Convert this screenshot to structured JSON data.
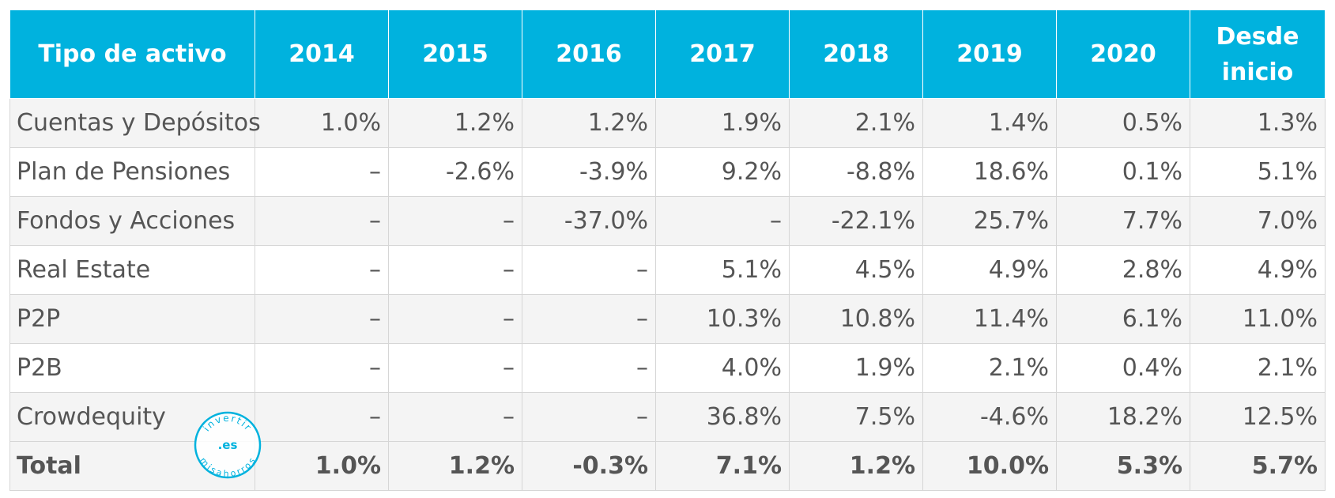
{
  "header": {
    "asset_type": "Tipo de activo",
    "years": [
      "2014",
      "2015",
      "2016",
      "2017",
      "2018",
      "2019",
      "2020"
    ],
    "since_start_line1": "Desde",
    "since_start_line2": "inicio"
  },
  "rows": [
    {
      "label": "Cuentas y Depósitos",
      "values": [
        "1.0%",
        "1.2%",
        "1.2%",
        "1.9%",
        "2.1%",
        "1.4%",
        "0.5%",
        "1.3%"
      ]
    },
    {
      "label": "Plan de Pensiones",
      "values": [
        "–",
        "-2.6%",
        "-3.9%",
        "9.2%",
        "-8.8%",
        "18.6%",
        "0.1%",
        "5.1%"
      ]
    },
    {
      "label": "Fondos y Acciones",
      "values": [
        "–",
        "–",
        "-37.0%",
        "–",
        "-22.1%",
        "25.7%",
        "7.7%",
        "7.0%"
      ]
    },
    {
      "label": "Real Estate",
      "values": [
        "–",
        "–",
        "–",
        "5.1%",
        "4.5%",
        "4.9%",
        "2.8%",
        "4.9%"
      ]
    },
    {
      "label": "P2P",
      "values": [
        "–",
        "–",
        "–",
        "10.3%",
        "10.8%",
        "11.4%",
        "6.1%",
        "11.0%"
      ]
    },
    {
      "label": "P2B",
      "values": [
        "–",
        "–",
        "–",
        "4.0%",
        "1.9%",
        "2.1%",
        "0.4%",
        "2.1%"
      ]
    },
    {
      "label": "Crowdequity",
      "values": [
        "–",
        "–",
        "–",
        "36.8%",
        "7.5%",
        "-4.6%",
        "18.2%",
        "12.5%"
      ]
    }
  ],
  "total": {
    "label": "Total",
    "values": [
      "1.0%",
      "1.2%",
      "-0.3%",
      "7.1%",
      "1.2%",
      "10.0%",
      "5.3%",
      "5.7%"
    ]
  },
  "watermark": {
    "top_text": "invertir",
    "center_text": ".es",
    "bottom_text": "misahorros"
  },
  "colors": {
    "header_bg": "#00b2de",
    "header_text": "#ffffff",
    "body_text": "#555555",
    "stripe": "#f4f4f4"
  }
}
